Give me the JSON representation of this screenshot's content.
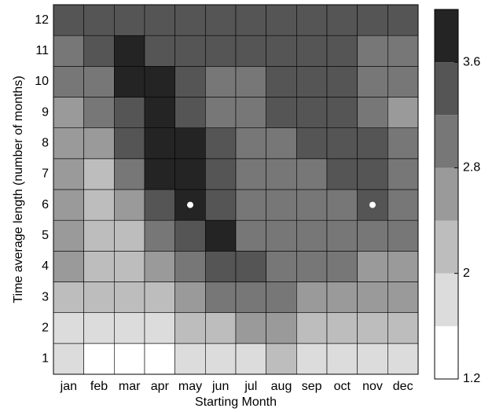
{
  "chart_data": {
    "type": "heatmap",
    "xlabel": "Starting Month",
    "ylabel": "Time average length (number of months)",
    "x": [
      "jan",
      "feb",
      "mar",
      "apr",
      "may",
      "jun",
      "jul",
      "aug",
      "sep",
      "oct",
      "nov",
      "dec"
    ],
    "y": [
      1,
      2,
      3,
      4,
      5,
      6,
      7,
      8,
      9,
      10,
      11,
      12
    ],
    "values": [
      [
        1.8,
        1.4,
        1.4,
        1.4,
        1.8,
        1.8,
        1.8,
        2.2,
        1.8,
        1.8,
        1.8,
        1.8
      ],
      [
        1.8,
        1.8,
        1.8,
        1.8,
        2.2,
        2.2,
        2.6,
        2.6,
        2.2,
        2.2,
        2.2,
        2.2
      ],
      [
        2.2,
        2.2,
        2.2,
        2.2,
        2.6,
        3.0,
        3.0,
        3.0,
        2.6,
        2.6,
        2.6,
        2.6
      ],
      [
        2.6,
        2.2,
        2.2,
        2.6,
        3.0,
        3.4,
        3.4,
        3.0,
        3.0,
        3.0,
        2.6,
        2.6
      ],
      [
        2.6,
        2.2,
        2.2,
        3.0,
        3.4,
        3.8,
        3.0,
        3.0,
        3.0,
        3.0,
        3.0,
        3.0
      ],
      [
        2.6,
        2.2,
        2.6,
        3.4,
        3.8,
        3.4,
        3.0,
        3.0,
        3.0,
        3.0,
        3.4,
        3.0
      ],
      [
        2.6,
        2.2,
        3.0,
        3.8,
        3.8,
        3.4,
        3.0,
        3.0,
        3.0,
        3.4,
        3.4,
        3.0
      ],
      [
        2.6,
        2.6,
        3.4,
        3.8,
        3.8,
        3.4,
        3.0,
        3.0,
        3.4,
        3.4,
        3.4,
        3.0
      ],
      [
        2.6,
        3.0,
        3.4,
        3.8,
        3.4,
        3.0,
        3.0,
        3.4,
        3.4,
        3.4,
        3.0,
        2.6
      ],
      [
        3.0,
        3.0,
        3.8,
        3.8,
        3.4,
        3.0,
        3.0,
        3.4,
        3.4,
        3.4,
        3.0,
        3.0
      ],
      [
        3.0,
        3.4,
        3.8,
        3.4,
        3.4,
        3.4,
        3.4,
        3.4,
        3.4,
        3.4,
        3.0,
        3.0
      ],
      [
        3.4,
        3.4,
        3.4,
        3.4,
        3.4,
        3.4,
        3.4,
        3.4,
        3.4,
        3.4,
        3.4,
        3.4
      ]
    ],
    "markers": [
      {
        "x": 4,
        "y": 6
      },
      {
        "x": 10,
        "y": 6
      }
    ],
    "colorbar": {
      "lim": [
        1.2,
        4.0
      ],
      "ticks": [
        1.2,
        2,
        2.8,
        3.6
      ],
      "colors": [
        "#ffffff",
        "#dcdcdc",
        "#bdbdbd",
        "#9a9a9a",
        "#777777",
        "#555555",
        "#242424"
      ]
    }
  }
}
